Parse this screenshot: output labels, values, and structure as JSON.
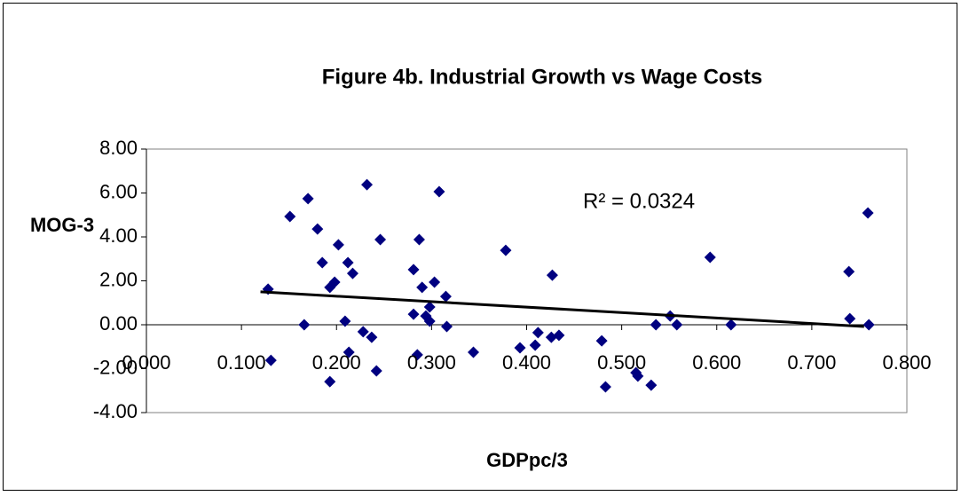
{
  "chart_data": {
    "type": "scatter",
    "title": "Figure 4b. Industrial Growth vs Wage Costs",
    "x_label": "GDPpc/3",
    "y_label": "MOG-3",
    "annotation": "R² = 0.0324",
    "color": "#000080",
    "x": [
      0.128,
      0.131,
      0.151,
      0.166,
      0.17,
      0.18,
      0.185,
      0.193,
      0.193,
      0.198,
      0.202,
      0.209,
      0.212,
      0.213,
      0.217,
      0.228,
      0.232,
      0.237,
      0.242,
      0.246,
      0.281,
      0.281,
      0.285,
      0.287,
      0.29,
      0.294,
      0.298,
      0.298,
      0.303,
      0.308,
      0.315,
      0.316,
      0.344,
      0.378,
      0.393,
      0.409,
      0.412,
      0.426,
      0.427,
      0.434,
      0.479,
      0.483,
      0.515,
      0.517,
      0.531,
      0.536,
      0.551,
      0.558,
      0.593,
      0.615,
      0.739,
      0.74,
      0.759,
      0.76
    ],
    "values": [
      1.62,
      -1.62,
      4.93,
      0.0,
      5.74,
      4.36,
      2.83,
      1.7,
      -2.59,
      1.94,
      3.64,
      0.16,
      2.83,
      -1.25,
      2.34,
      -0.32,
      6.38,
      -0.57,
      -2.1,
      3.88,
      2.51,
      0.48,
      -1.37,
      3.88,
      1.7,
      0.4,
      0.81,
      0.16,
      1.94,
      6.06,
      1.29,
      -0.08,
      -1.25,
      3.39,
      -1.05,
      -0.93,
      -0.36,
      -0.57,
      2.26,
      -0.48,
      -0.73,
      -2.83,
      -2.18,
      -2.34,
      -2.75,
      0.0,
      0.4,
      0.0,
      3.07,
      0.0,
      2.42,
      0.28,
      5.09,
      0.0
    ],
    "trendline": {
      "x": [
        0.12,
        0.755
      ],
      "values": [
        1.5,
        -0.08
      ],
      "color": "#000000"
    },
    "xlim": [
      0,
      0.8
    ],
    "xticks": [
      {
        "value": 0,
        "label": "0.000"
      },
      {
        "value": 0.1,
        "label": "0.100"
      },
      {
        "value": 0.2,
        "label": "0.200"
      },
      {
        "value": 0.3,
        "label": "0.300"
      },
      {
        "value": 0.4,
        "label": "0.400"
      },
      {
        "value": 0.5,
        "label": "0.500"
      },
      {
        "value": 0.6,
        "label": "0.600"
      },
      {
        "value": 0.7,
        "label": "0.700"
      },
      {
        "value": 0.8,
        "label": "0.800"
      }
    ],
    "ylim": [
      -4,
      8
    ],
    "yticks": [
      {
        "value": -4,
        "label": "-4.00"
      },
      {
        "value": -2,
        "label": "-2.00"
      },
      {
        "value": 0,
        "label": "0.00"
      },
      {
        "value": 2,
        "label": "2.00"
      },
      {
        "value": 4,
        "label": "4.00"
      },
      {
        "value": 6,
        "label": "6.00"
      },
      {
        "value": 8,
        "label": "8.00"
      }
    ]
  }
}
